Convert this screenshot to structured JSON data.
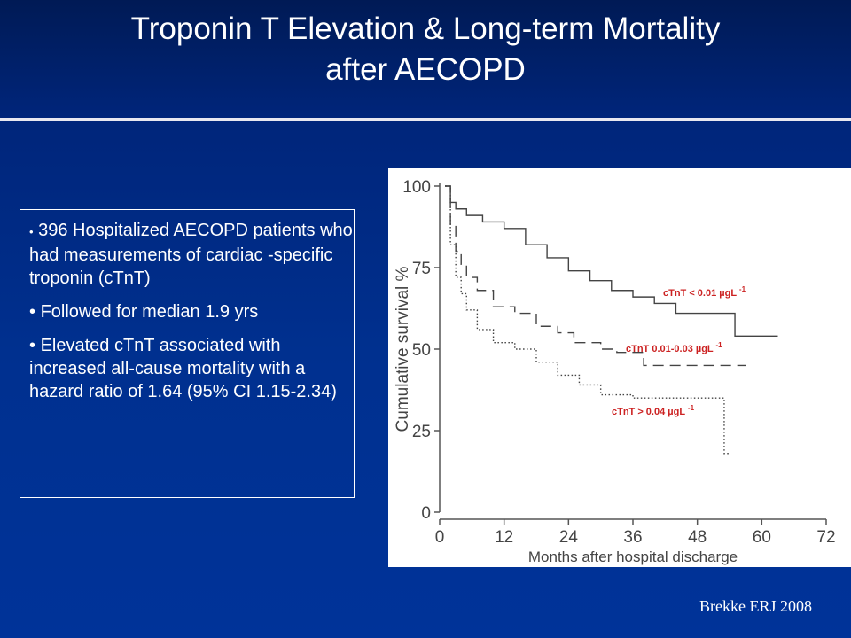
{
  "slide": {
    "title_line1": "Troponin T Elevation & Long-term Mortality",
    "title_line2": "after AECOPD",
    "bullets": [
      "396 Hospitalized AECOPD patients who had measurements of cardiac -specific troponin (cTnT)",
      "Followed for median 1.9 yrs",
      "Elevated cTnT associated with increased all-cause mortality with a hazard ratio of 1.64 (95% CI 1.15-2.34)"
    ],
    "bullet_glyph": "•",
    "citation": "Brekke ERJ 2008",
    "colors": {
      "background": "#003399",
      "text": "#ffffff",
      "series_label": "#cc2222"
    }
  },
  "chart_data": {
    "type": "line",
    "xlabel": "Months after hospital discharge",
    "ylabel": "Cumulative survival %",
    "xlim": [
      0,
      72
    ],
    "ylim": [
      0,
      100
    ],
    "xticks": [
      "0",
      "12",
      "24",
      "36",
      "48",
      "60",
      "72"
    ],
    "yticks": [
      "0",
      "25",
      "50",
      "75",
      "100"
    ],
    "grid": false,
    "series": [
      {
        "name": "cTnT < 0.01 µgL",
        "superscript": "-1",
        "style": "solid",
        "points": [
          [
            1,
            100
          ],
          [
            2,
            95
          ],
          [
            3,
            93
          ],
          [
            5,
            91
          ],
          [
            8,
            89
          ],
          [
            12,
            87
          ],
          [
            16,
            82
          ],
          [
            20,
            78
          ],
          [
            24,
            74
          ],
          [
            28,
            71
          ],
          [
            32,
            68
          ],
          [
            36,
            66
          ],
          [
            40,
            64
          ],
          [
            44,
            61
          ],
          [
            48,
            61
          ],
          [
            54,
            61
          ],
          [
            55,
            54
          ],
          [
            63,
            54
          ]
        ]
      },
      {
        "name": "cTnT 0.01-0.03 µgL",
        "superscript": "-1",
        "style": "dashed",
        "points": [
          [
            1,
            100
          ],
          [
            2,
            88
          ],
          [
            3,
            80
          ],
          [
            4,
            76
          ],
          [
            5,
            72
          ],
          [
            7,
            68
          ],
          [
            10,
            63
          ],
          [
            14,
            61
          ],
          [
            18,
            57
          ],
          [
            22,
            55
          ],
          [
            25,
            52
          ],
          [
            30,
            50
          ],
          [
            33,
            49
          ],
          [
            38,
            45
          ],
          [
            48,
            45
          ],
          [
            57,
            45
          ]
        ]
      },
      {
        "name": "cTnT > 0.04 µgL",
        "superscript": "-1",
        "style": "dotted",
        "points": [
          [
            1,
            100
          ],
          [
            2,
            82
          ],
          [
            3,
            72
          ],
          [
            4,
            67
          ],
          [
            5,
            62
          ],
          [
            7,
            56
          ],
          [
            10,
            52
          ],
          [
            14,
            50
          ],
          [
            18,
            46
          ],
          [
            22,
            42
          ],
          [
            26,
            39
          ],
          [
            30,
            36
          ],
          [
            36,
            35
          ],
          [
            42,
            35
          ],
          [
            53,
            35
          ],
          [
            53,
            18
          ],
          [
            54,
            18
          ]
        ]
      }
    ]
  }
}
